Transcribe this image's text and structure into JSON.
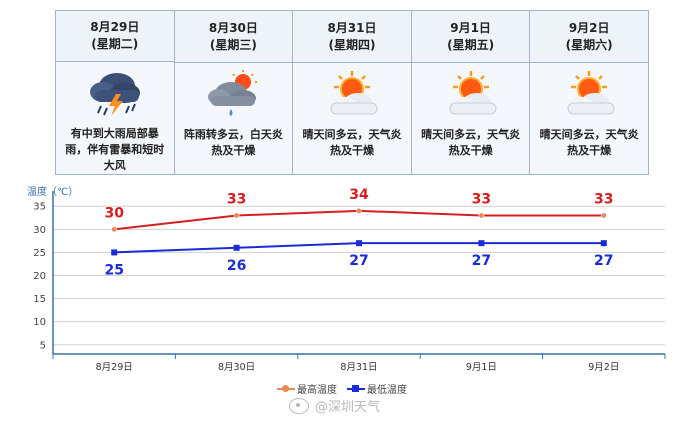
{
  "forecast": {
    "days": [
      {
        "date": "8月29日",
        "weekday": "(星期二)",
        "icon": "thunderstorm-icon",
        "desc": "有中到大雨局部暴雨，伴有雷暴和短时大风"
      },
      {
        "date": "8月30日",
        "weekday": "(星期三)",
        "icon": "rain-to-cloudy-icon",
        "desc": "阵雨转多云，白天炎热及干燥"
      },
      {
        "date": "8月31日",
        "weekday": "(星期四)",
        "icon": "sunny-cloudy-icon",
        "desc": "晴天间多云，天气炎热及干燥"
      },
      {
        "date": "9月1日",
        "weekday": "(星期五)",
        "icon": "sunny-cloudy-icon",
        "desc": "晴天间多云，天气炎热及干燥"
      },
      {
        "date": "9月2日",
        "weekday": "(星期六)",
        "icon": "sunny-cloudy-icon",
        "desc": "晴天间多云，天气炎热及干燥"
      }
    ]
  },
  "chart_data": {
    "type": "line",
    "ylabel": "温度（℃）",
    "categories": [
      "8月29日",
      "8月30日",
      "8月31日",
      "9月1日",
      "9月2日"
    ],
    "yticks": [
      5,
      10,
      15,
      20,
      25,
      30,
      35
    ],
    "ylim": [
      3,
      37
    ],
    "grid": true,
    "legend_position": "bottom-center",
    "series": [
      {
        "name": "最高温度",
        "values": [
          30,
          33,
          34,
          33,
          33
        ],
        "color": "#e8875a",
        "line_color": "#d42020",
        "label_color": "#d42020",
        "marker": "circle"
      },
      {
        "name": "最低温度",
        "values": [
          25,
          26,
          27,
          27,
          27
        ],
        "color": "#1b2bd6",
        "line_color": "#1b2bd6",
        "label_color": "#1b2bd6",
        "marker": "square"
      }
    ]
  },
  "watermark": "@深圳天气"
}
